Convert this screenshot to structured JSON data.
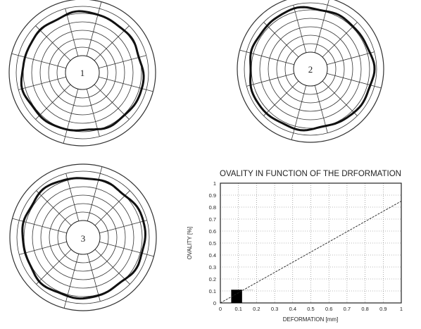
{
  "polar_plots": [
    {
      "label": "1"
    },
    {
      "label": "2"
    },
    {
      "label": "3"
    }
  ],
  "chart_data": {
    "type": "line",
    "title": "OVALITY IN FUNCTION OF THE DRFORMATION",
    "xlabel": "DEFORMATION [mm]",
    "ylabel": "OVALITY [%]",
    "xlim": [
      0,
      1
    ],
    "ylim": [
      0,
      1
    ],
    "x_ticks": [
      "0",
      "0.1",
      "0.2",
      "0.3",
      "0.4",
      "0.5",
      "0.6",
      "0.7",
      "0.8",
      "0.9",
      "1"
    ],
    "y_ticks": [
      "0",
      "0.1",
      "0.2",
      "0.3",
      "0.4",
      "0.5",
      "0.6",
      "0.7",
      "0.8",
      "0.9",
      "1"
    ],
    "grid": true,
    "series": [
      {
        "x": [
          0,
          1
        ],
        "y": [
          0,
          0.85
        ]
      }
    ],
    "highlight": {
      "x0": 0.06,
      "x1": 0.12,
      "y_top": 0.11
    },
    "reference_line": {
      "x": [
        0.06,
        0.18
      ],
      "y": 0.11
    }
  }
}
